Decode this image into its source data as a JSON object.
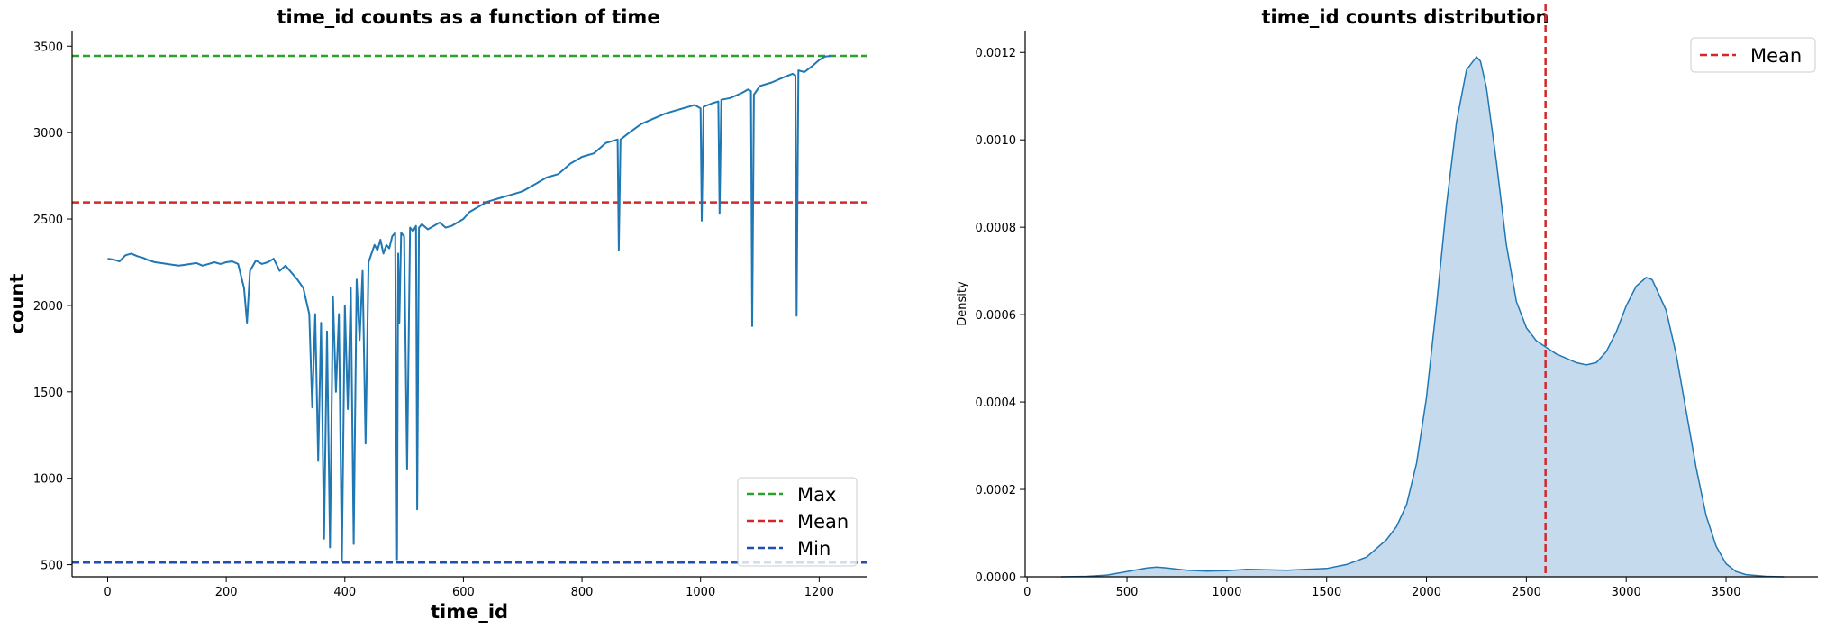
{
  "chart_data": [
    {
      "type": "line",
      "title": "time_id counts as a function of time",
      "xlabel": "time_id",
      "ylabel": "count",
      "xlim": [
        -60,
        1280
      ],
      "ylim": [
        430,
        3590
      ],
      "xticks": [
        0,
        200,
        400,
        600,
        800,
        1000,
        1200
      ],
      "yticks": [
        500,
        1000,
        1500,
        2000,
        2500,
        3000,
        3500
      ],
      "line_color": "#1f77b4",
      "grid": false,
      "legend_position": "lower right",
      "reference_lines": [
        {
          "name": "Max",
          "value": 3444,
          "color": "#2ca02c"
        },
        {
          "name": "Mean",
          "value": 2596,
          "color": "#d62728"
        },
        {
          "name": "Min",
          "value": 512,
          "color": "#1f4fb4"
        }
      ],
      "series": [
        {
          "x": [
            0,
            10,
            20,
            30,
            40,
            50,
            60,
            70,
            80,
            90,
            100,
            110,
            120,
            130,
            140,
            150,
            160,
            170,
            180,
            190,
            200,
            210,
            220,
            230,
            235,
            240,
            250,
            260,
            270,
            280,
            290,
            300,
            310,
            320,
            330,
            340,
            345,
            350,
            355,
            360,
            365,
            370,
            375,
            380,
            385,
            390,
            395,
            400,
            405,
            410,
            415,
            420,
            425,
            430,
            435,
            440,
            445,
            450,
            455,
            460,
            465,
            470,
            475,
            480,
            485,
            488,
            490,
            492,
            495,
            500,
            505,
            510,
            515,
            520,
            522,
            525,
            530,
            540,
            550,
            560,
            570,
            580,
            590,
            600,
            610,
            620,
            640,
            660,
            680,
            700,
            720,
            740,
            760,
            780,
            800,
            820,
            840,
            860,
            862,
            865,
            880,
            900,
            920,
            940,
            960,
            980,
            990,
            1000,
            1002,
            1005,
            1020,
            1030,
            1032,
            1035,
            1050,
            1070,
            1080,
            1085,
            1087,
            1090,
            1100,
            1120,
            1140,
            1155,
            1160,
            1162,
            1165,
            1175,
            1190,
            1200,
            1210,
            1220
          ],
          "values": [
            2270,
            2265,
            2255,
            2290,
            2300,
            2285,
            2275,
            2260,
            2250,
            2245,
            2240,
            2235,
            2230,
            2235,
            2240,
            2245,
            2230,
            2240,
            2250,
            2240,
            2250,
            2255,
            2240,
            2100,
            1900,
            2200,
            2260,
            2240,
            2250,
            2270,
            2200,
            2230,
            2190,
            2150,
            2100,
            1950,
            1410,
            1950,
            1100,
            1900,
            650,
            1850,
            600,
            2050,
            1500,
            1950,
            520,
            2000,
            1400,
            2100,
            620,
            2150,
            1800,
            2200,
            1200,
            2250,
            2300,
            2350,
            2320,
            2380,
            2300,
            2350,
            2330,
            2400,
            2420,
            530,
            2300,
            1900,
            2420,
            2400,
            1050,
            2450,
            2430,
            2460,
            820,
            2450,
            2470,
            2440,
            2460,
            2480,
            2450,
            2460,
            2480,
            2500,
            2540,
            2560,
            2600,
            2620,
            2640,
            2660,
            2700,
            2740,
            2760,
            2820,
            2860,
            2880,
            2940,
            2960,
            2320,
            2960,
            3000,
            3050,
            3080,
            3110,
            3130,
            3150,
            3160,
            3140,
            2490,
            3150,
            3170,
            3180,
            2530,
            3190,
            3200,
            3230,
            3250,
            3240,
            1880,
            3220,
            3270,
            3290,
            3320,
            3340,
            3330,
            1940,
            3360,
            3350,
            3390,
            3420,
            3440,
            3444
          ]
        }
      ]
    },
    {
      "type": "area",
      "title": "time_id counts distribution",
      "xlabel": "",
      "ylabel": "Density",
      "xlim": [
        -10,
        3960
      ],
      "ylim": [
        0,
        0.00125
      ],
      "xticks": [
        0,
        500,
        1000,
        1500,
        2000,
        2500,
        3000,
        3500
      ],
      "yticks": [
        "0.0000",
        "0.0002",
        "0.0004",
        "0.0006",
        "0.0008",
        "0.0010",
        "0.0012"
      ],
      "ytick_values": [
        0,
        0.0002,
        0.0004,
        0.0006,
        0.0008,
        0.001,
        0.0012
      ],
      "line_color": "#1f77b4",
      "fill_color": "#c5daec",
      "grid": false,
      "legend_position": "upper right",
      "reference_lines": [
        {
          "name": "Mean",
          "value": 2596,
          "color": "#d62728"
        }
      ],
      "series": [
        {
          "x": [
            170,
            300,
            400,
            500,
            600,
            650,
            700,
            800,
            900,
            1000,
            1100,
            1200,
            1300,
            1400,
            1500,
            1600,
            1700,
            1800,
            1850,
            1900,
            1950,
            2000,
            2050,
            2100,
            2150,
            2200,
            2250,
            2270,
            2300,
            2350,
            2400,
            2450,
            2500,
            2550,
            2600,
            2650,
            2700,
            2750,
            2800,
            2850,
            2900,
            2950,
            3000,
            3050,
            3100,
            3130,
            3150,
            3200,
            3250,
            3300,
            3350,
            3400,
            3450,
            3500,
            3550,
            3600,
            3700,
            3790
          ],
          "values": [
            0.0,
            1e-06,
            4e-06,
            1.2e-05,
            2e-05,
            2.2e-05,
            2e-05,
            1.5e-05,
            1.3e-05,
            1.4e-05,
            1.7e-05,
            1.6e-05,
            1.5e-05,
            1.7e-05,
            1.9e-05,
            2.8e-05,
            4.5e-05,
            8.5e-05,
            0.000115,
            0.000165,
            0.00026,
            0.00041,
            0.00062,
            0.00085,
            0.00104,
            0.00116,
            0.00119,
            0.00118,
            0.00112,
            0.00095,
            0.00076,
            0.00063,
            0.00057,
            0.00054,
            0.000525,
            0.00051,
            0.0005,
            0.00049,
            0.000485,
            0.00049,
            0.000515,
            0.00056,
            0.00062,
            0.000665,
            0.000685,
            0.00068,
            0.00066,
            0.00061,
            0.00051,
            0.00038,
            0.00025,
            0.00014,
            7e-05,
            3e-05,
            1.2e-05,
            5e-06,
            1e-06,
            0.0
          ]
        }
      ]
    }
  ]
}
